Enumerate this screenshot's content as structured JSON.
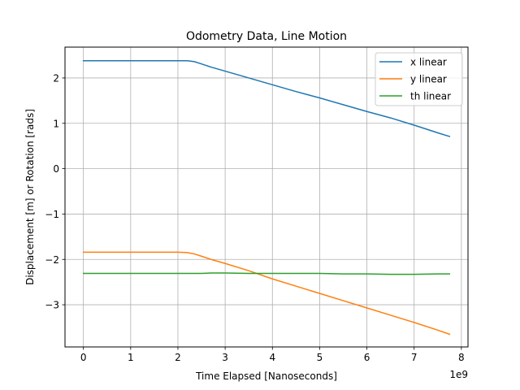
{
  "chart_data": {
    "type": "line",
    "title": "Odometry Data, Line  Motion",
    "xlabel": "Time Elapsed [Nanoseconds]",
    "ylabel": "Displacement [m] or Rotation [rads]",
    "x_offset_label": "1e9",
    "x_scale": 1000000000,
    "xlim": [
      -0.39,
      8.14
    ],
    "ylim": [
      -3.93,
      2.68
    ],
    "x_ticks": [
      0,
      1,
      2,
      3,
      4,
      5,
      6,
      7,
      8
    ],
    "x_tick_labels": [
      "0",
      "1",
      "2",
      "3",
      "4",
      "5",
      "6",
      "7",
      "8"
    ],
    "y_ticks": [
      -3,
      -2,
      -1,
      0,
      1,
      2
    ],
    "y_tick_labels": [
      "−3",
      "−2",
      "−1",
      "0",
      "1",
      "2"
    ],
    "grid": true,
    "legend_position": "upper right",
    "series": [
      {
        "name": "x linear",
        "color": "#1f77b4",
        "x": [
          0,
          0.5,
          1.0,
          1.5,
          2.0,
          2.2,
          2.35,
          2.5,
          2.7,
          3.0,
          3.5,
          4.0,
          4.5,
          5.0,
          5.5,
          6.0,
          6.5,
          7.0,
          7.5,
          7.75
        ],
        "y": [
          2.38,
          2.38,
          2.38,
          2.38,
          2.38,
          2.38,
          2.36,
          2.31,
          2.24,
          2.15,
          2.0,
          1.85,
          1.7,
          1.56,
          1.41,
          1.26,
          1.12,
          0.96,
          0.79,
          0.71
        ]
      },
      {
        "name": "y linear",
        "color": "#ff7f0e",
        "x": [
          0,
          0.5,
          1.0,
          1.5,
          2.0,
          2.2,
          2.35,
          2.5,
          2.7,
          3.0,
          3.5,
          4.0,
          4.5,
          5.0,
          5.5,
          6.0,
          6.5,
          7.0,
          7.5,
          7.75
        ],
        "y": [
          -1.84,
          -1.84,
          -1.84,
          -1.84,
          -1.84,
          -1.85,
          -1.88,
          -1.93,
          -2.0,
          -2.09,
          -2.25,
          -2.43,
          -2.59,
          -2.75,
          -2.91,
          -3.07,
          -3.23,
          -3.39,
          -3.56,
          -3.65
        ]
      },
      {
        "name": "th linear",
        "color": "#2ca02c",
        "x": [
          0,
          0.5,
          1.0,
          1.5,
          2.0,
          2.5,
          2.7,
          3.0,
          3.5,
          4.0,
          4.5,
          5.0,
          5.5,
          6.0,
          6.5,
          7.0,
          7.5,
          7.75
        ],
        "y": [
          -2.31,
          -2.31,
          -2.31,
          -2.31,
          -2.31,
          -2.31,
          -2.3,
          -2.3,
          -2.31,
          -2.31,
          -2.31,
          -2.31,
          -2.32,
          -2.32,
          -2.33,
          -2.33,
          -2.32,
          -2.32
        ]
      }
    ]
  }
}
